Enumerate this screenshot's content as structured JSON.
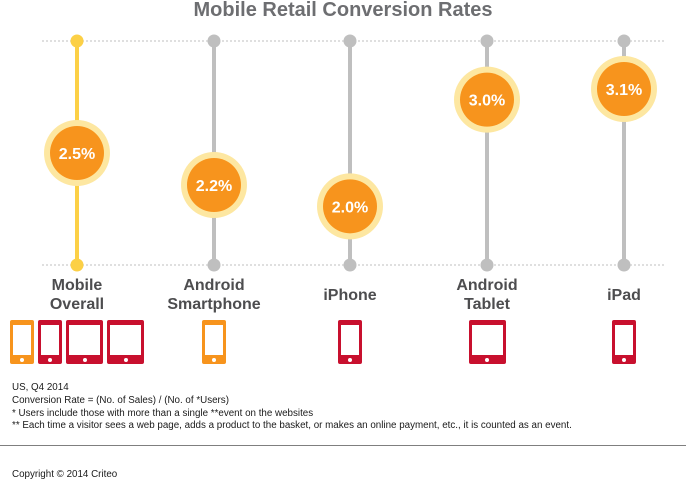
{
  "chart_data": {
    "type": "scatter",
    "title": "Mobile Retail Conversion Rates",
    "categories": [
      "Mobile Overall",
      "Android Smartphone",
      "iPhone",
      "Android Tablet",
      "iPad"
    ],
    "values": [
      2.5,
      2.2,
      2.0,
      3.0,
      3.1
    ],
    "value_labels": [
      "2.5%",
      "2.2%",
      "2.0%",
      "3.0%",
      "3.1%"
    ],
    "category_labels": [
      [
        "Mobile",
        "Overall"
      ],
      [
        "Android",
        "Smartphone"
      ],
      [
        "iPhone"
      ],
      [
        "Android",
        "Tablet"
      ],
      [
        "iPad"
      ]
    ],
    "unit": "%",
    "ylim": [
      1.45,
      3.55
    ],
    "highlight_index": 0,
    "colors": {
      "bubble": "#f7941d",
      "bubble_ring": "#fde7a1",
      "stem": "#bfbfbf",
      "stem_highlight": "#fcd046",
      "gridline": "#bfbfbf",
      "phone_orange": "#f7941d",
      "device_red": "#c8102e"
    }
  },
  "devices": [
    [
      {
        "kind": "phone",
        "color": "orange"
      },
      {
        "kind": "phone",
        "color": "red"
      },
      {
        "kind": "tablet",
        "color": "red"
      },
      {
        "kind": "tablet",
        "color": "red"
      }
    ],
    [
      {
        "kind": "phone",
        "color": "orange"
      }
    ],
    [
      {
        "kind": "phone",
        "color": "red"
      }
    ],
    [
      {
        "kind": "tablet",
        "color": "red"
      }
    ],
    [
      {
        "kind": "phone",
        "color": "red"
      }
    ]
  ],
  "notes": [
    "US, Q4 2014",
    "Conversion Rate = (No. of Sales) / (No. of *Users)",
    "* Users include those with more than a single **event on the websites",
    "**  Each time a visitor sees a web page, adds a product to the basket, or makes an online payment, etc., it is counted as an event."
  ],
  "copyright": "Copyright © 2014 Criteo"
}
